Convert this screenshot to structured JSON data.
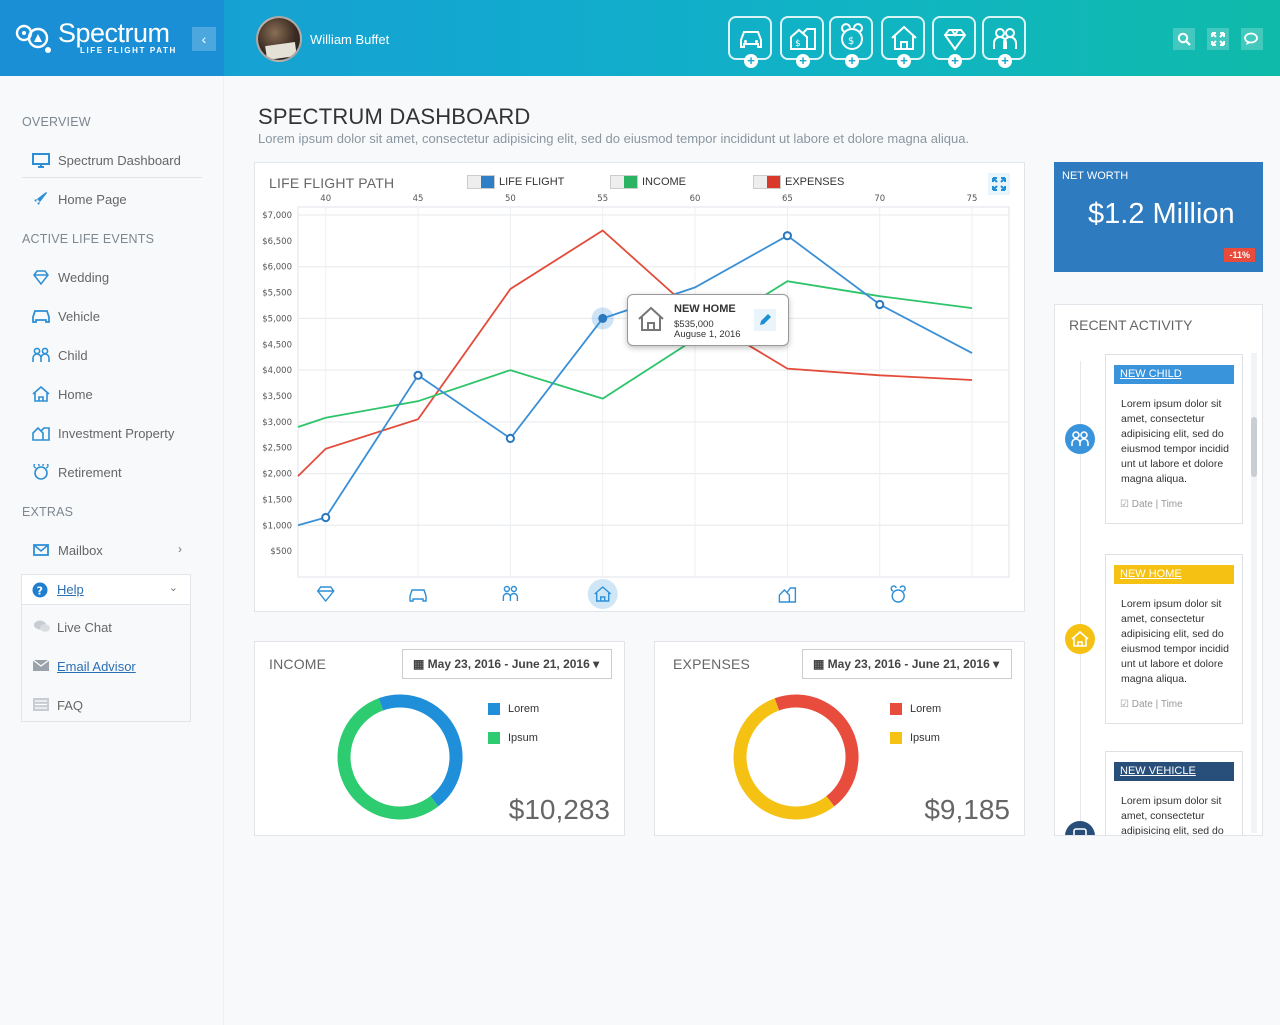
{
  "header": {
    "brand_name": "Spectrum",
    "brand_tagline": "LIFE FLIGHT PATH",
    "user_name": "William Buffet",
    "event_icons": [
      "vehicle-icon",
      "investment-property-icon",
      "retirement-icon",
      "home-icon",
      "wedding-icon",
      "child-icon"
    ],
    "tool_icons": [
      "search-icon",
      "expand-icon",
      "chat-icon"
    ]
  },
  "sidebar": {
    "sections": {
      "overview": "OVERVIEW",
      "active_life_events": "ACTIVE LIFE EVENTS",
      "extras": "EXTRAS"
    },
    "overview_items": [
      {
        "label": "Spectrum Dashboard",
        "icon": "monitor-icon"
      },
      {
        "label": "Home Page",
        "icon": "rocket-icon"
      }
    ],
    "event_items": [
      {
        "label": "Wedding",
        "icon": "wedding-icon"
      },
      {
        "label": "Vehicle",
        "icon": "vehicle-icon"
      },
      {
        "label": "Child",
        "icon": "child-icon"
      },
      {
        "label": "Home",
        "icon": "home-icon"
      },
      {
        "label": "Investment Property",
        "icon": "investment-property-icon"
      },
      {
        "label": "Retirement",
        "icon": "retirement-icon"
      }
    ],
    "extras_items": [
      {
        "label": "Mailbox",
        "icon": "mail-icon"
      },
      {
        "label": "Help",
        "icon": "help-icon"
      },
      {
        "label": "Live Chat",
        "icon": "chat-icon"
      },
      {
        "label": "Email Advisor",
        "icon": "envelope-icon"
      },
      {
        "label": "FAQ",
        "icon": "faq-icon"
      }
    ]
  },
  "main": {
    "title": "SPECTRUM DASHBOARD",
    "subtitle": "Lorem ipsum dolor sit amet, consectetur adipisicing elit, sed do eiusmod tempor incididunt ut labore et dolore magna aliqua."
  },
  "life_chart": {
    "title": "LIFE FLIGHT PATH",
    "legend": [
      "LIFE FLIGHT",
      "INCOME",
      "EXPENSES"
    ],
    "tooltip": {
      "title": "NEW HOME",
      "value": "$535,000",
      "date": "Auguse 1, 2016"
    }
  },
  "income_panel": {
    "title": "INCOME",
    "date_range": "May 23, 2016 - June 21, 2016",
    "legend": [
      "Lorem",
      "Ipsum"
    ],
    "total": "$10,283"
  },
  "expenses_panel": {
    "title": "EXPENSES",
    "date_range": "May 23, 2016 - June 21, 2016",
    "legend": [
      "Lorem",
      "Ipsum"
    ],
    "total": "$9,185"
  },
  "net_worth": {
    "label": "NET WORTH",
    "value": "$1.2 Million",
    "change": "-11%"
  },
  "recent_activity": {
    "title": "RECENT ACTIVITY",
    "items": [
      {
        "tag": "NEW CHILD",
        "text": "Lorem ipsum dolor sit amet, consectetur adipisicing elit, sed do eiusmod tempor incidid unt ut labore et dolore magna aliqua.",
        "meta": "Date | Time"
      },
      {
        "tag": "NEW HOME",
        "text": "Lorem ipsum dolor sit amet, consectetur adipisicing elit, sed do eiusmod tempor incidid unt ut labore et dolore magna aliqua.",
        "meta": "Date | Time"
      },
      {
        "tag": "NEW VEHICLE",
        "text": "Lorem ipsum dolor sit amet, consectetur adipisicing elit, sed do",
        "meta": ""
      }
    ]
  },
  "colors": {
    "life_flight": "#3a8fd6",
    "income": "#2dc46a",
    "expenses": "#e34c3a",
    "donut_blue": "#1e8fd8",
    "donut_green": "#2dcc70",
    "donut_red": "#e74c3c",
    "donut_yellow": "#f5c214",
    "child_tag": "#3a94dc",
    "home_tag": "#f5c214",
    "vehicle_tag": "#284e7a"
  },
  "chart_data": [
    {
      "type": "line",
      "title": "LIFE FLIGHT PATH",
      "x_ticks": [
        40,
        45,
        50,
        55,
        60,
        65,
        70,
        75
      ],
      "y_ticks": [
        "$7,000",
        "$6,500",
        "$6,000",
        "$5,500",
        "$5,000",
        "$4,500",
        "$4,000",
        "$3,500",
        "$3,000",
        "$2,500",
        "$2,000",
        "$1,500",
        "$1,000",
        "$500"
      ],
      "xlim": [
        38.5,
        77
      ],
      "ylim": [
        0,
        7000
      ],
      "series": [
        {
          "name": "LIFE FLIGHT",
          "x": [
            38.5,
            40,
            45,
            50,
            55,
            60,
            65,
            70,
            75
          ],
          "y": [
            1000,
            1150,
            3900,
            2680,
            5000,
            5600,
            6600,
            5270,
            4330
          ],
          "markers": [
            40,
            45,
            50,
            55,
            65,
            70
          ]
        },
        {
          "name": "INCOME",
          "x": [
            38.5,
            40,
            45,
            50,
            55,
            60,
            65,
            70,
            75
          ],
          "y": [
            2900,
            3080,
            3400,
            4000,
            3450,
            4600,
            5720,
            5430,
            5200
          ]
        },
        {
          "name": "EXPENSES",
          "x": [
            38.5,
            40,
            45,
            50,
            55,
            60,
            65,
            70,
            75
          ],
          "y": [
            1950,
            2480,
            3050,
            5570,
            6700,
            5100,
            4030,
            3900,
            3810
          ]
        }
      ],
      "event_markers": [
        {
          "x": 40,
          "icon": "wedding-icon"
        },
        {
          "x": 45,
          "icon": "vehicle-icon"
        },
        {
          "x": 50,
          "icon": "child-icon"
        },
        {
          "x": 55,
          "icon": "home-icon",
          "active": true
        },
        {
          "x": 65,
          "icon": "investment-property-icon"
        },
        {
          "x": 71,
          "icon": "retirement-icon"
        }
      ],
      "grid": true
    },
    {
      "type": "pie",
      "title": "INCOME",
      "labels": [
        "Lorem",
        "Ipsum"
      ],
      "values": [
        45,
        55
      ]
    },
    {
      "type": "pie",
      "title": "EXPENSES",
      "labels": [
        "Lorem",
        "Ipsum"
      ],
      "values": [
        45,
        55
      ]
    }
  ]
}
